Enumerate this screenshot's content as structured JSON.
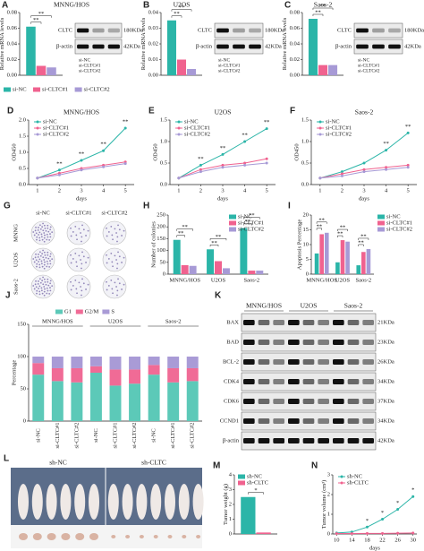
{
  "chart_data": [
    {
      "panel": "A",
      "type": "bar",
      "ylabel": "Relative mRNA levels",
      "ylim": [
        0,
        0.08
      ],
      "yticks": [
        {
          "value": 0,
          "label": "0.00"
        },
        {
          "value": 0.02,
          "label": "0.02"
        },
        {
          "value": 0.04,
          "label": "0.04"
        },
        {
          "value": 0.06,
          "label": "0.06"
        },
        {
          "value": 0.08,
          "label": "0.08"
        }
      ],
      "legend": "bottom",
      "series": [
        {
          "name": "si-NC",
          "color": "#2bb5a8",
          "values": [
            0.062
          ]
        },
        {
          "name": "si-CLTC#1",
          "color": "#f0628f",
          "values": [
            0.012
          ]
        },
        {
          "name": "si-CLTC#2",
          "color": "#a79ad6",
          "values": [
            0.01
          ]
        }
      ],
      "annotations": [
        [
          "**",
          "**"
        ]
      ]
    },
    {
      "panel": "B",
      "type": "bar",
      "title": "U2OS",
      "ylabel": "Relative mRNA levels",
      "ylim": [
        0,
        0.04
      ],
      "yticks": [
        {
          "value": 0,
          "label": "0.00"
        },
        {
          "value": 0.01,
          "label": "0.01"
        },
        {
          "value": 0.02,
          "label": "0.02"
        },
        {
          "value": 0.03,
          "label": "0.03"
        },
        {
          "value": 0.04,
          "label": "0.04"
        }
      ],
      "series": [
        {
          "color": "#2bb5a8",
          "values": [
            0.035
          ]
        },
        {
          "color": "#f0628f",
          "values": [
            0.01
          ]
        },
        {
          "color": "#a79ad6",
          "values": [
            0.004
          ]
        }
      ],
      "annotations": [
        [
          "**",
          "**"
        ]
      ]
    },
    {
      "panel": "C",
      "type": "bar",
      "title": "Saos-2",
      "ylabel": "Relative mRNA levels",
      "ylim": [
        0,
        0.08
      ],
      "yticks": [
        {
          "value": 0,
          "label": "0.00"
        },
        {
          "value": 0.02,
          "label": "0.02"
        },
        {
          "value": 0.04,
          "label": "0.04"
        },
        {
          "value": 0.06,
          "label": "0.06"
        },
        {
          "value": 0.08,
          "label": "0.08"
        }
      ],
      "series": [
        {
          "color": "#2bb5a8",
          "values": [
            0.072
          ]
        },
        {
          "color": "#f0628f",
          "values": [
            0.013
          ]
        },
        {
          "color": "#a79ad6",
          "values": [
            0.013
          ]
        }
      ],
      "annotations": [
        [
          "**",
          "**"
        ]
      ]
    },
    {
      "panel": "D",
      "type": "line",
      "title": "MNNG/HOS",
      "ylabel": "OD450",
      "xlabel": "days",
      "x": [
        1,
        2,
        3,
        4,
        5
      ],
      "xlim": [
        0.6,
        5.4
      ],
      "xticks": [
        1,
        2,
        3,
        4,
        5
      ],
      "ylim": [
        0,
        2
      ],
      "yticks": [
        {
          "value": 0,
          "label": "0.0"
        },
        {
          "value": 0.5,
          "label": "0.5"
        },
        {
          "value": 1,
          "label": "1.0"
        },
        {
          "value": 1.5,
          "label": "1.5"
        },
        {
          "value": 2,
          "label": "2.0"
        }
      ],
      "legend": "top-left",
      "series": [
        {
          "name": "si-NC",
          "color": "#2bb5a8",
          "values": [
            0.2,
            0.45,
            0.75,
            1.05,
            1.75
          ]
        },
        {
          "name": "si-CLTC#1",
          "color": "#f0628f",
          "values": [
            0.2,
            0.35,
            0.5,
            0.6,
            0.7
          ]
        },
        {
          "name": "si-CLTC#2",
          "color": "#a79ad6",
          "values": [
            0.2,
            0.3,
            0.45,
            0.55,
            0.65
          ]
        }
      ],
      "annotations": [
        {
          "text": "**",
          "x": 2
        },
        {
          "text": "**",
          "x": 3
        },
        {
          "text": "**",
          "x": 4
        },
        {
          "text": "**",
          "x": 5
        }
      ]
    },
    {
      "panel": "E",
      "type": "line",
      "title": "U2OS",
      "ylabel": "OD450",
      "xlabel": "days",
      "x": [
        1,
        2,
        3,
        4,
        5
      ],
      "xlim": [
        0.6,
        5.4
      ],
      "xticks": [
        1,
        2,
        3,
        4,
        5
      ],
      "ylim": [
        0,
        1.5
      ],
      "yticks": [
        {
          "value": 0,
          "label": "0.0"
        },
        {
          "value": 0.5,
          "label": "0.5"
        },
        {
          "value": 1,
          "label": "1.0"
        },
        {
          "value": 1.5,
          "label": "1.5"
        }
      ],
      "legend": "top-left",
      "series": [
        {
          "name": "si-NC",
          "color": "#2bb5a8",
          "values": [
            0.15,
            0.45,
            0.7,
            1.0,
            1.3
          ]
        },
        {
          "name": "si-CLTC#1",
          "color": "#f0628f",
          "values": [
            0.15,
            0.35,
            0.45,
            0.5,
            0.6
          ]
        },
        {
          "name": "si-CLTC#2",
          "color": "#a79ad6",
          "values": [
            0.15,
            0.3,
            0.4,
            0.45,
            0.5
          ]
        }
      ],
      "annotations": [
        {
          "text": "**",
          "x": 2
        },
        {
          "text": "**",
          "x": 3
        },
        {
          "text": "**",
          "x": 4
        },
        {
          "text": "**",
          "x": 5
        }
      ]
    },
    {
      "panel": "F",
      "type": "line",
      "title": "Saos-2",
      "ylabel": "OD450",
      "xlabel": "days",
      "x": [
        1,
        2,
        3,
        4,
        5
      ],
      "xlim": [
        0.6,
        5.4
      ],
      "xticks": [
        1,
        2,
        3,
        4,
        5
      ],
      "ylim": [
        0,
        1.5
      ],
      "yticks": [
        {
          "value": 0,
          "label": "0.0"
        },
        {
          "value": 0.5,
          "label": "0.5"
        },
        {
          "value": 1,
          "label": "1.0"
        },
        {
          "value": 1.5,
          "label": "1.5"
        }
      ],
      "legend": "top-left",
      "series": [
        {
          "name": "si-NC",
          "color": "#2bb5a8",
          "values": [
            0.15,
            0.3,
            0.5,
            0.8,
            1.2
          ]
        },
        {
          "name": "si-CLTC#1",
          "color": "#f0628f",
          "values": [
            0.15,
            0.25,
            0.35,
            0.4,
            0.45
          ]
        },
        {
          "name": "si-CLTC#2",
          "color": "#a79ad6",
          "values": [
            0.15,
            0.2,
            0.3,
            0.35,
            0.4
          ]
        }
      ],
      "annotations": [
        {
          "text": "**",
          "x": 4
        },
        {
          "text": "**",
          "x": 5
        }
      ]
    },
    {
      "panel": "H",
      "type": "bar",
      "ylabel": "Number of colonies",
      "categories": [
        "MNNG/HOS",
        "U2OS",
        "Saos-2"
      ],
      "ylim": [
        0,
        250
      ],
      "yticks": [
        0,
        50,
        100,
        150,
        200,
        250
      ],
      "legend": "top-right",
      "series": [
        {
          "name": "si-NC",
          "color": "#2bb5a8",
          "values": [
            145,
            105,
            195
          ]
        },
        {
          "name": "si-CLTC#1",
          "color": "#f0628f",
          "values": [
            38,
            55,
            15
          ]
        },
        {
          "name": "si-CLTC#2",
          "color": "#a79ad6",
          "values": [
            35,
            25,
            15
          ]
        }
      ],
      "annotations": [
        [
          "**",
          "**"
        ],
        [
          "**",
          "**"
        ],
        [
          "**",
          "**"
        ]
      ]
    },
    {
      "panel": "I",
      "type": "bar",
      "ylabel": "Apoptosis Percentage",
      "categories": [
        "MNNG/HOS",
        "U2OS",
        "Saos-2"
      ],
      "ylim": [
        0,
        20
      ],
      "yticks": [
        0,
        5,
        10,
        15,
        20
      ],
      "legend": "right",
      "series": [
        {
          "name": "si-NC",
          "color": "#2bb5a8",
          "values": [
            7,
            4,
            3
          ]
        },
        {
          "name": "si-CLTC#1",
          "color": "#f0628f",
          "values": [
            13.5,
            11.5,
            7.5
          ]
        },
        {
          "name": "si-CLTC#2",
          "color": "#a79ad6",
          "values": [
            14,
            11,
            8.5
          ]
        }
      ],
      "annotations": [
        [
          "**",
          "**"
        ],
        [
          "**",
          "**"
        ],
        [
          "**",
          "**"
        ]
      ]
    },
    {
      "panel": "J",
      "type": "bar",
      "stacked": true,
      "ylabel": "Percentage",
      "groups": [
        "MNNG/HOS",
        "U2OS",
        "Saos-2"
      ],
      "categories": [
        "si-NC",
        "si-CLTC#1",
        "si-CLTC#2",
        "si-NC",
        "si-CLTC#1",
        "si-CLTC#2",
        "si-NC",
        "si-CLTC#1",
        "si-CLTC#2"
      ],
      "ylim": [
        0,
        150
      ],
      "yticks": [
        0,
        50,
        100,
        150
      ],
      "legend": "top",
      "series": [
        {
          "name": "G1",
          "color": "#5cc9b8",
          "values": [
            72,
            62,
            60,
            75,
            55,
            58,
            72,
            60,
            62
          ]
        },
        {
          "name": "G2/M",
          "color": "#f06b96",
          "values": [
            18,
            20,
            22,
            10,
            25,
            22,
            15,
            22,
            20
          ]
        },
        {
          "name": "S",
          "color": "#a99bd6",
          "values": [
            10,
            18,
            18,
            15,
            20,
            20,
            13,
            18,
            18
          ]
        }
      ]
    },
    {
      "panel": "M",
      "type": "bar",
      "ylabel": "Tumor weight (g)",
      "ylim": [
        0,
        4
      ],
      "yticks": [
        0,
        1,
        2,
        3,
        4
      ],
      "legend": "top-right",
      "series": [
        {
          "name": "sh-NC",
          "color": "#2bb5a8",
          "values": [
            2.5
          ]
        },
        {
          "name": "sh-CLTC",
          "color": "#f0628f",
          "values": [
            0.1
          ]
        }
      ],
      "annotations": [
        [
          "*"
        ]
      ]
    },
    {
      "panel": "N",
      "type": "line",
      "ylabel": "Tumor volume (cm³)",
      "xlabel": "days",
      "x": [
        10,
        14,
        18,
        22,
        26,
        30
      ],
      "xlim": [
        9,
        31
      ],
      "xticks": [
        10,
        14,
        18,
        22,
        26,
        30
      ],
      "ylim": [
        0,
        3
      ],
      "yticks": [
        0,
        1,
        2,
        3
      ],
      "legend": "top-left",
      "series": [
        {
          "name": "sh-NC",
          "color": "#2bb5a8",
          "values": [
            0.05,
            0.1,
            0.35,
            0.75,
            1.25,
            1.9
          ]
        },
        {
          "name": "sh-CLTC",
          "color": "#f0628f",
          "values": [
            0.02,
            0.02,
            0.03,
            0.03,
            0.04,
            0.05
          ]
        }
      ],
      "annotations": [
        {
          "text": "*",
          "x": 18
        },
        {
          "text": "*",
          "x": 22
        },
        {
          "text": "*",
          "x": 26
        },
        {
          "text": "*",
          "x": 30
        }
      ]
    }
  ],
  "blots": [
    {
      "title": "MNNG/HOS",
      "rows": [
        {
          "label": "CLTC",
          "size": "180KDa"
        },
        {
          "label": "β-actin",
          "size": "42KDa"
        }
      ],
      "lanes": [
        "si-NC",
        "si-CLTC#1",
        "si-CLTC#2"
      ]
    },
    {
      "rows": [
        {
          "label": "CLTC",
          "size": "180KDa"
        },
        {
          "label": "β-actin",
          "size": "42KDa"
        }
      ],
      "lanes": [
        "si-NC",
        "si-CLTC#1",
        "si-CLTC#2"
      ]
    },
    {
      "rows": [
        {
          "label": "CLTC",
          "size": "180KDa"
        },
        {
          "label": "β-actin",
          "size": "42KDa"
        }
      ],
      "lanes": [
        "si-NC",
        "si-CLTC#1",
        "si-CLTC#2"
      ]
    },
    {
      "panel": "K",
      "headers": [
        "MNNG/HOS",
        "U2OS",
        "Saos-2"
      ],
      "rows": [
        {
          "label": "BAX",
          "size": "21KDa"
        },
        {
          "label": "BAD",
          "size": "23KDa"
        },
        {
          "label": "BCL-2",
          "size": "26KDa"
        },
        {
          "label": "CDK4",
          "size": "34KDa"
        },
        {
          "label": "CDK6",
          "size": "37KDa"
        },
        {
          "label": "CCND1",
          "size": "34KDa"
        },
        {
          "label": "β-actin",
          "size": "42KDa"
        }
      ]
    }
  ],
  "photos": [
    {
      "panel": "G",
      "cols": [
        "si-NC",
        "si-CLTC#1",
        "si-CLTC#2"
      ],
      "rows": [
        "MNNG",
        "U2OS",
        "Saos-2"
      ]
    },
    {
      "panel": "L",
      "labels": [
        "sh-NC",
        "sh-CLTC"
      ]
    }
  ]
}
